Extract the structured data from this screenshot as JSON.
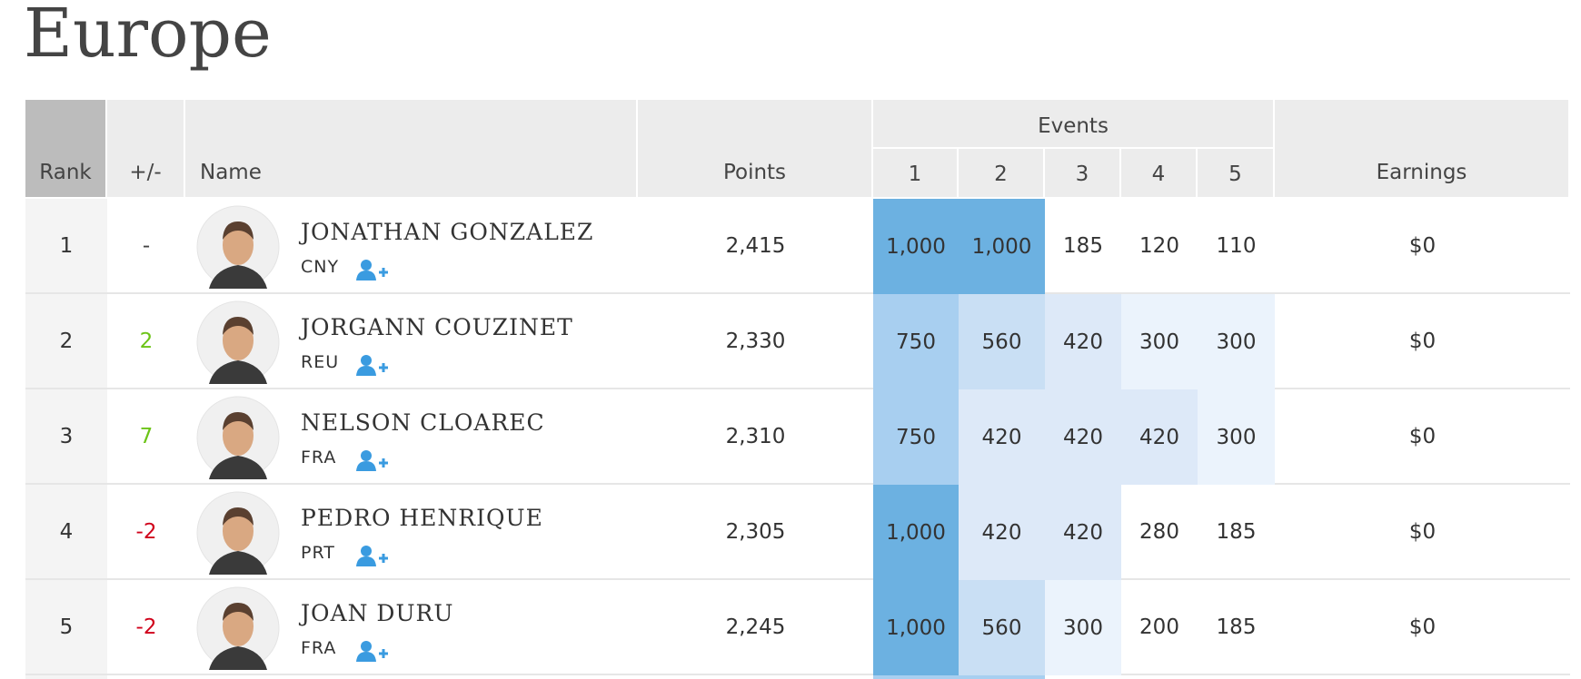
{
  "header": {
    "title": "Europe"
  },
  "table": {
    "columns": [
      "Rank",
      "+/-",
      "Name",
      "Points",
      "Events",
      "Earnings"
    ],
    "event_numbers": [
      "1",
      "2",
      "3",
      "4",
      "5"
    ],
    "rows": [
      {
        "rank": "1",
        "change": "-",
        "change_color": "#444444",
        "name": "JONATHAN GONZALEZ",
        "country": "CNY",
        "points": "2,415",
        "events": [
          "1,000",
          "1,000",
          "185",
          "120",
          "110"
        ],
        "event_colors": [
          "#6cb1e1",
          "#6cb1e1",
          "#ffffff",
          "#ffffff",
          "#ffffff"
        ],
        "earnings": "$0"
      },
      {
        "rank": "2",
        "change": "2",
        "change_color": "#6cc417",
        "name": "JORGANN COUZINET",
        "country": "REU",
        "points": "2,330",
        "events": [
          "750",
          "560",
          "420",
          "300",
          "300"
        ],
        "event_colors": [
          "#a8cff0",
          "#c9dff4",
          "#dde9f8",
          "#ebf3fc",
          "#ebf3fc"
        ],
        "earnings": "$0"
      },
      {
        "rank": "3",
        "change": "7",
        "change_color": "#6cc417",
        "name": "NELSON CLOAREC",
        "country": "FRA",
        "points": "2,310",
        "events": [
          "750",
          "420",
          "420",
          "420",
          "300"
        ],
        "event_colors": [
          "#a8cff0",
          "#dde9f8",
          "#dde9f8",
          "#dde9f8",
          "#ebf3fc"
        ],
        "earnings": "$0"
      },
      {
        "rank": "4",
        "change": "-2",
        "change_color": "#d0021b",
        "name": "PEDRO HENRIQUE",
        "country": "PRT",
        "points": "2,305",
        "events": [
          "1,000",
          "420",
          "420",
          "280",
          "185"
        ],
        "event_colors": [
          "#6cb1e1",
          "#dde9f8",
          "#dde9f8",
          "#ffffff",
          "#ffffff"
        ],
        "earnings": "$0"
      },
      {
        "rank": "5",
        "change": "-2",
        "change_color": "#d0021b",
        "name": "JOAN DURU",
        "country": "FRA",
        "points": "2,245",
        "events": [
          "1,000",
          "560",
          "300",
          "200",
          "185"
        ],
        "event_colors": [
          "#6cb1e1",
          "#c9dff4",
          "#ebf3fc",
          "#ffffff",
          "#ffffff"
        ],
        "earnings": "$0"
      }
    ]
  }
}
